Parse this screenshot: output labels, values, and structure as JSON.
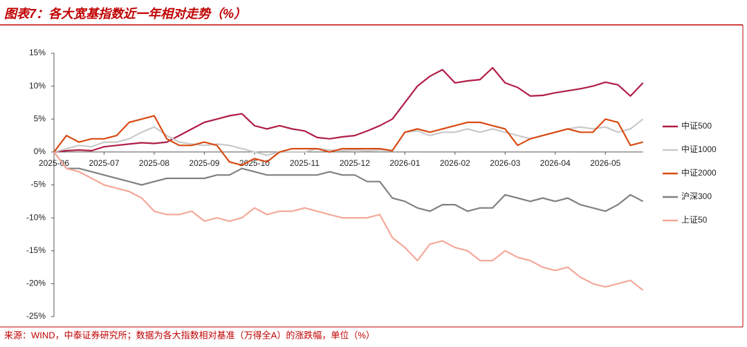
{
  "chart_data": {
    "type": "line",
    "title": "图表7：各大宽基指数近一年相对走势（%）",
    "source": "来源：WIND，中泰证券研究所；数据为各大指数相对基准（万得全A）的涨跌幅，单位（%）",
    "categories": [
      "2025-06",
      null,
      null,
      null,
      "2025-07",
      null,
      null,
      null,
      "2025-08",
      null,
      null,
      null,
      "2025-09",
      null,
      null,
      null,
      "2025-10",
      null,
      null,
      null,
      "2025-11",
      null,
      null,
      null,
      "2025-12",
      null,
      null,
      null,
      "2026-01",
      null,
      null,
      null,
      "2026-02",
      null,
      null,
      null,
      "2026-03",
      null,
      null,
      null,
      "2026-04",
      null,
      null,
      null,
      "2026-05",
      null,
      null,
      null
    ],
    "series": [
      {
        "name": "中证500",
        "color": "#b01c46",
        "values": [
          0,
          0.2,
          0.3,
          0.2,
          0.8,
          1.0,
          1.2,
          1.4,
          1.3,
          1.5,
          2.5,
          3.5,
          4.5,
          5.0,
          5.5,
          5.8,
          4.0,
          3.5,
          4.0,
          3.5,
          3.2,
          2.2,
          2.0,
          2.3,
          2.5,
          3.2,
          4.0,
          5.0,
          7.5,
          10.0,
          11.5,
          12.5,
          10.5,
          10.8,
          11.0,
          12.8,
          10.5,
          9.8,
          8.5,
          8.6,
          9.0,
          9.3,
          9.6,
          10.0,
          10.6,
          10.2,
          8.5,
          10.5
        ]
      },
      {
        "name": "中证1000",
        "color": "#c9c9c9",
        "values": [
          0,
          0.5,
          1.0,
          0.8,
          1.5,
          1.5,
          2.0,
          3.0,
          3.8,
          2.5,
          1.5,
          1.2,
          1.0,
          1.2,
          1.0,
          0.5,
          0,
          -0.5,
          0,
          0,
          0,
          0.5,
          0.3,
          0.2,
          0.3,
          0.2,
          0.3,
          0.2,
          3.0,
          3.2,
          2.5,
          3.0,
          3.0,
          3.5,
          3.0,
          3.5,
          3.0,
          2.5,
          2.0,
          2.5,
          3.0,
          3.5,
          3.8,
          3.5,
          3.8,
          3.0,
          3.5,
          5.0
        ]
      },
      {
        "name": "中证2000",
        "color": "#d94a12",
        "values": [
          0,
          2.5,
          1.5,
          2.0,
          2.0,
          2.5,
          4.5,
          5.0,
          5.5,
          2.0,
          1.0,
          1.0,
          1.5,
          1.0,
          -1.5,
          -2.0,
          -1.0,
          -1.5,
          0,
          0.5,
          0.5,
          0.5,
          0,
          0.5,
          0.5,
          0.5,
          0.5,
          0.2,
          3.0,
          3.5,
          3.0,
          3.5,
          4.0,
          4.5,
          4.5,
          4.0,
          3.5,
          1.0,
          2.0,
          2.5,
          3.0,
          3.5,
          3.0,
          3.0,
          5.0,
          4.5,
          1.0,
          1.5
        ]
      },
      {
        "name": "沪深300",
        "color": "#808080",
        "values": [
          0,
          -2.5,
          -2.5,
          -3.0,
          -3.5,
          -4.0,
          -4.5,
          -5.0,
          -4.5,
          -4.0,
          -4.0,
          -4.0,
          -4.0,
          -3.5,
          -3.5,
          -2.5,
          -3.0,
          -3.5,
          -3.5,
          -3.5,
          -3.5,
          -3.5,
          -3.0,
          -3.5,
          -3.5,
          -4.5,
          -4.5,
          -7.0,
          -7.5,
          -8.5,
          -9.0,
          -8.0,
          -8.0,
          -9.0,
          -8.5,
          -8.5,
          -6.5,
          -7.0,
          -7.5,
          -7.0,
          -7.5,
          -7.0,
          -8.0,
          -8.5,
          -9.0,
          -8.0,
          -6.5,
          -7.5
        ]
      },
      {
        "name": "上证50",
        "color": "#f4a898",
        "values": [
          0,
          -2.5,
          -3.0,
          -4.0,
          -5.0,
          -5.5,
          -6.0,
          -7.0,
          -9.0,
          -9.5,
          -9.5,
          -9.0,
          -10.5,
          -10.0,
          -10.5,
          -10.0,
          -8.5,
          -9.5,
          -9.0,
          -9.0,
          -8.5,
          -9.0,
          -9.5,
          -10.0,
          -10.0,
          -10.0,
          -9.5,
          -13.0,
          -14.5,
          -16.5,
          -14.0,
          -13.5,
          -14.5,
          -15.0,
          -16.5,
          -16.5,
          -15.0,
          -16.0,
          -16.5,
          -17.5,
          -18.0,
          -17.5,
          -19.0,
          -20.0,
          -20.5,
          -20.0,
          -19.5,
          -21.0
        ]
      }
    ],
    "ylim": [
      -25,
      15
    ],
    "yticks": [
      {
        "value": -25,
        "label": "-25%"
      },
      {
        "value": -20,
        "label": "-20%"
      },
      {
        "value": -15,
        "label": "-15%"
      },
      {
        "value": -10,
        "label": "-10%"
      },
      {
        "value": -5,
        "label": "-5%"
      },
      {
        "value": 0,
        "label": "0%"
      },
      {
        "value": 5,
        "label": "5%"
      },
      {
        "value": 10,
        "label": "10%"
      },
      {
        "value": 15,
        "label": "15%"
      }
    ],
    "grid": false,
    "legend": "right"
  }
}
